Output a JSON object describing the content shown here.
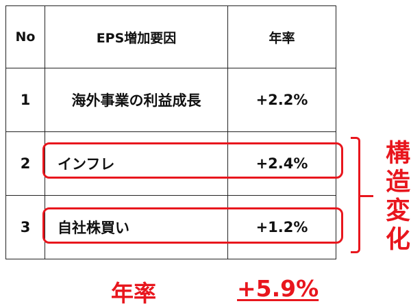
{
  "table": {
    "headers": [
      "No",
      "EPS増加要因",
      "年率"
    ],
    "rows": [
      {
        "no": "1",
        "factor": "海外事業の利益成長",
        "rate": "+2.2%"
      },
      {
        "no": "2",
        "factor": "インフレ",
        "rate": "+2.4%"
      },
      {
        "no": "3",
        "factor": "自社株買い",
        "rate": "+1.2%"
      }
    ]
  },
  "annotation": {
    "label": "構造変化",
    "highlighted_rows": [
      2,
      3
    ],
    "color": "#e8161d"
  },
  "total": {
    "label": "年率",
    "value": "+5.9%"
  }
}
